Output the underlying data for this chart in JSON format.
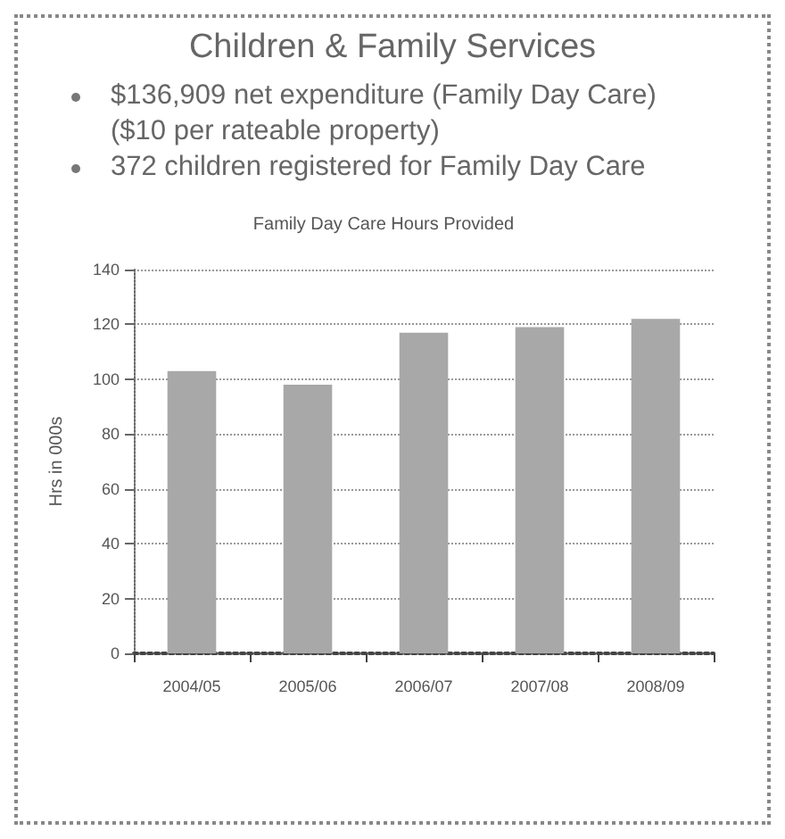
{
  "chart_data": {
    "type": "bar",
    "title": "Family Day Care Hours Provided",
    "subtitle": "Children & Family Services",
    "annotations": [
      "$136,909 net expenditure (Family Day Care)\n($10 per rateable property)",
      "372 children registered for Family Day Care"
    ],
    "ylabel": "Hrs in 000s",
    "categories": [
      "2004/05",
      "2005/06",
      "2006/07",
      "2007/08",
      "2008/09"
    ],
    "values": [
      103,
      98,
      117,
      119,
      122
    ],
    "color": "#a8a8a8",
    "ylim": [
      0,
      140
    ],
    "yticks": [
      0,
      20,
      40,
      60,
      80,
      100,
      120,
      140
    ],
    "grid": "y"
  }
}
